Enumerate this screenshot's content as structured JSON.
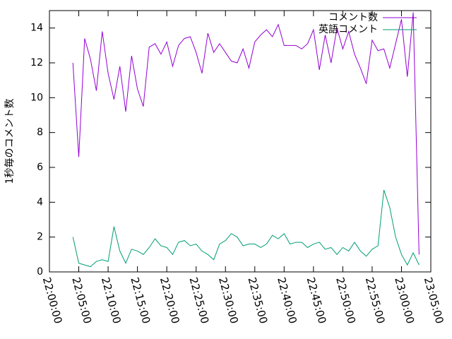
{
  "chart_data": {
    "type": "line",
    "ylabel": "1秒毎のコメント数",
    "x": [
      "22:04:00",
      "22:05:00",
      "22:06:00",
      "22:07:00",
      "22:08:00",
      "22:09:00",
      "22:10:00",
      "22:11:00",
      "22:12:00",
      "22:13:00",
      "22:14:00",
      "22:15:00",
      "22:16:00",
      "22:17:00",
      "22:18:00",
      "22:19:00",
      "22:20:00",
      "22:21:00",
      "22:22:00",
      "22:23:00",
      "22:24:00",
      "22:25:00",
      "22:26:00",
      "22:27:00",
      "22:28:00",
      "22:29:00",
      "22:30:00",
      "22:31:00",
      "22:32:00",
      "22:33:00",
      "22:34:00",
      "22:35:00",
      "22:36:00",
      "22:37:00",
      "22:38:00",
      "22:39:00",
      "22:40:00",
      "22:41:00",
      "22:42:00",
      "22:43:00",
      "22:44:00",
      "22:45:00",
      "22:46:00",
      "22:47:00",
      "22:48:00",
      "22:49:00",
      "22:50:00",
      "22:51:00",
      "22:52:00",
      "22:53:00",
      "22:54:00",
      "22:55:00",
      "22:56:00",
      "22:57:00",
      "22:58:00",
      "22:59:00",
      "23:00:00",
      "23:01:00",
      "23:02:00",
      "23:03:00"
    ],
    "series": [
      {
        "name": "コメント数",
        "color": "#9400d3",
        "values": [
          12.0,
          6.6,
          13.4,
          12.2,
          10.4,
          13.8,
          11.4,
          9.9,
          11.8,
          9.2,
          12.4,
          10.5,
          9.5,
          12.9,
          13.1,
          12.5,
          13.2,
          11.8,
          13.0,
          13.4,
          13.5,
          12.6,
          11.4,
          13.7,
          12.6,
          13.1,
          12.6,
          12.1,
          12.0,
          12.8,
          11.7,
          13.2,
          13.6,
          13.9,
          13.5,
          14.2,
          13.0,
          13.0,
          13.0,
          12.8,
          13.1,
          13.9,
          11.6,
          13.6,
          12.0,
          14.0,
          12.8,
          13.8,
          12.5,
          11.7,
          10.8,
          13.3,
          12.7,
          12.8,
          11.7,
          13.1,
          14.5,
          11.2,
          14.9,
          1.0
        ]
      },
      {
        "name": "英語コメント",
        "color": "#009e73",
        "values": [
          2.0,
          0.5,
          0.4,
          0.3,
          0.6,
          0.7,
          0.6,
          2.6,
          1.2,
          0.5,
          1.3,
          1.2,
          1.0,
          1.4,
          1.9,
          1.5,
          1.4,
          1.0,
          1.7,
          1.8,
          1.5,
          1.6,
          1.2,
          1.0,
          0.7,
          1.6,
          1.8,
          2.2,
          2.0,
          1.5,
          1.6,
          1.6,
          1.4,
          1.6,
          2.1,
          1.9,
          2.2,
          1.6,
          1.7,
          1.7,
          1.4,
          1.6,
          1.7,
          1.3,
          1.4,
          1.0,
          1.4,
          1.2,
          1.7,
          1.2,
          0.9,
          1.3,
          1.5,
          4.7,
          3.7,
          2.0,
          1.0,
          0.4,
          1.1,
          0.4
        ]
      }
    ],
    "xlim": [
      "22:00:00",
      "23:05:00"
    ],
    "xticks": [
      "22:00:00",
      "22:05:00",
      "22:10:00",
      "22:15:00",
      "22:20:00",
      "22:25:00",
      "22:30:00",
      "22:35:00",
      "22:40:00",
      "22:45:00",
      "22:50:00",
      "22:55:00",
      "23:00:00",
      "23:05:00"
    ],
    "ylim": [
      0,
      15
    ],
    "yticks": [
      0,
      2,
      4,
      6,
      8,
      10,
      12,
      14
    ],
    "legend": "top-right",
    "grid": false
  }
}
